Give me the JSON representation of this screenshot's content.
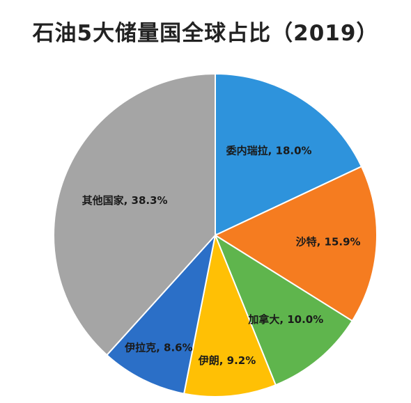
{
  "chart_data": {
    "type": "pie",
    "title": "石油5大储量国全球占比（2019）",
    "slices": [
      {
        "name": "委内瑞拉",
        "value": 18.0,
        "label": "委内瑞拉, 18.0%",
        "color": "#2E93DC"
      },
      {
        "name": "沙特",
        "value": 15.9,
        "label": "沙特, 15.9%",
        "color": "#F57C20"
      },
      {
        "name": "加拿大",
        "value": 10.0,
        "label": "加拿大, 10.0%",
        "color": "#5FB54D"
      },
      {
        "name": "伊朗",
        "value": 9.2,
        "label": "伊朗, 9.2%",
        "color": "#FFC005"
      },
      {
        "name": "伊拉克",
        "value": 8.6,
        "label": "伊拉克, 8.6%",
        "color": "#2B6FC7"
      },
      {
        "name": "其他国家",
        "value": 38.3,
        "label": "其他国家, 38.3%",
        "color": "#A5A5A5"
      }
    ],
    "start": "12 o'clock",
    "direction": "clockwise",
    "legend": "none"
  }
}
